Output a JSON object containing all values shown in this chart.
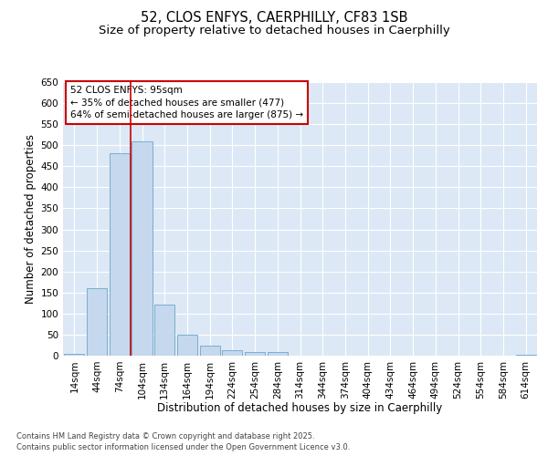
{
  "title1": "52, CLOS ENFYS, CAERPHILLY, CF83 1SB",
  "title2": "Size of property relative to detached houses in Caerphilly",
  "xlabel": "Distribution of detached houses by size in Caerphilly",
  "ylabel": "Number of detached properties",
  "footnote": "Contains HM Land Registry data © Crown copyright and database right 2025.\nContains public sector information licensed under the Open Government Licence v3.0.",
  "categories": [
    "14sqm",
    "44sqm",
    "74sqm",
    "104sqm",
    "134sqm",
    "164sqm",
    "194sqm",
    "224sqm",
    "254sqm",
    "284sqm",
    "314sqm",
    "344sqm",
    "374sqm",
    "404sqm",
    "434sqm",
    "464sqm",
    "494sqm",
    "524sqm",
    "554sqm",
    "584sqm",
    "614sqm"
  ],
  "values": [
    5,
    160,
    480,
    510,
    122,
    50,
    24,
    13,
    9,
    8,
    0,
    0,
    0,
    0,
    0,
    0,
    0,
    0,
    0,
    0,
    3
  ],
  "bar_color": "#c5d8ed",
  "bar_edge_color": "#7aaed0",
  "vline_color": "#cc0000",
  "annotation_text": "52 CLOS ENFYS: 95sqm\n← 35% of detached houses are smaller (477)\n64% of semi-detached houses are larger (875) →",
  "annotation_box_color": "#ffffff",
  "annotation_box_edge": "#cc0000",
  "ylim": [
    0,
    650
  ],
  "yticks": [
    0,
    50,
    100,
    150,
    200,
    250,
    300,
    350,
    400,
    450,
    500,
    550,
    600,
    650
  ],
  "fig_bg_color": "#ffffff",
  "plot_bg_color": "#dce8f5",
  "grid_color": "#ffffff",
  "title_fontsize": 10.5,
  "subtitle_fontsize": 9.5,
  "label_fontsize": 8.5,
  "tick_fontsize": 7.5,
  "annot_fontsize": 7.5,
  "footnote_fontsize": 6.0
}
